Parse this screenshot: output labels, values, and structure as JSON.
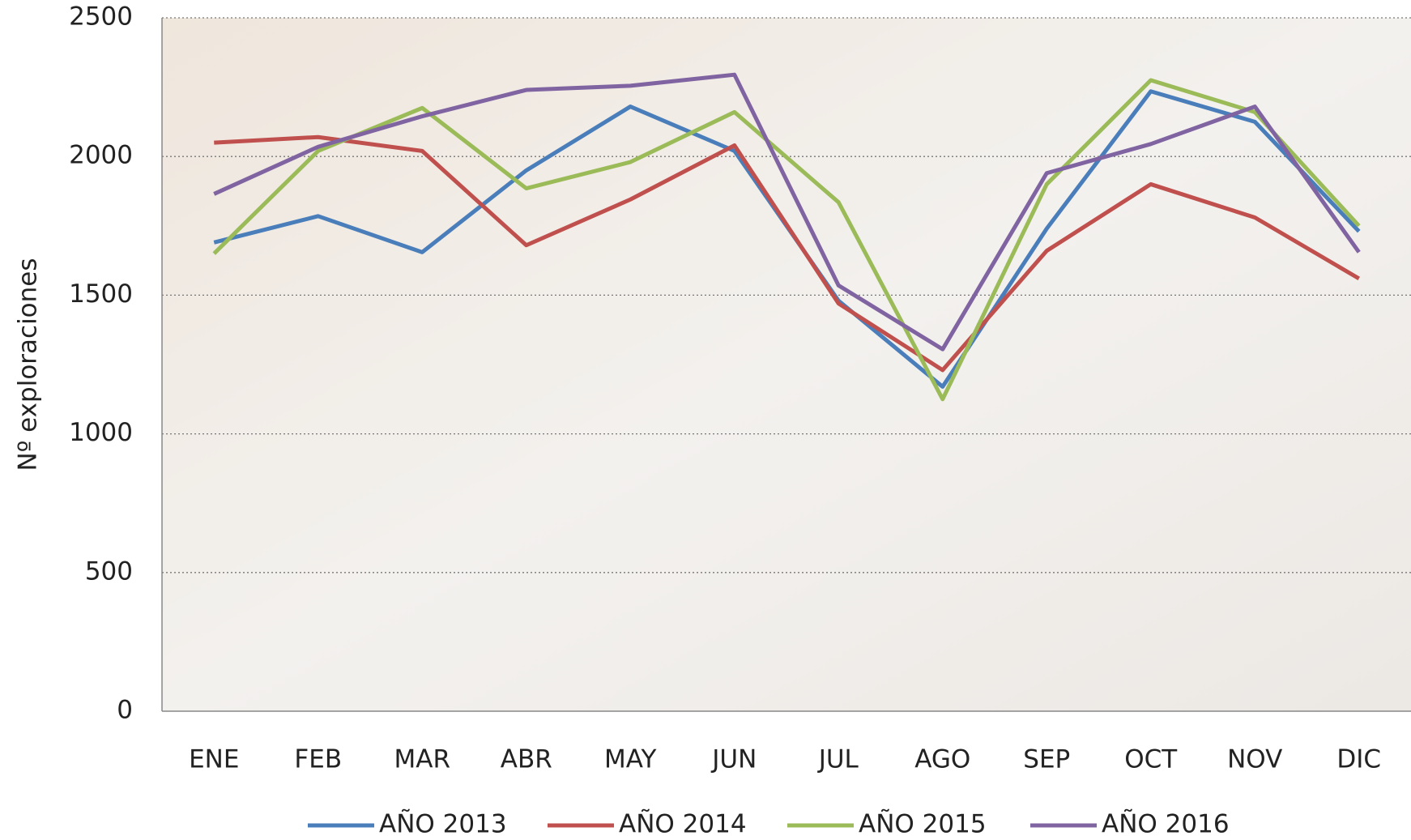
{
  "chart_data": {
    "type": "line",
    "y_label": "Nº exploraciones",
    "categories": [
      "ENE",
      "FEB",
      "MAR",
      "ABR",
      "MAY",
      "JUN",
      "JUL",
      "AGO",
      "SEP",
      "OCT",
      "NOV",
      "DIC"
    ],
    "series": [
      {
        "name": "AÑO 2013",
        "color": "#4a7ebb",
        "values": [
          1690,
          1785,
          1655,
          1950,
          2180,
          2020,
          1480,
          1170,
          1740,
          2235,
          2125,
          1730
        ]
      },
      {
        "name": "AÑO 2014",
        "color": "#c0504d",
        "values": [
          2050,
          2070,
          2020,
          1680,
          1845,
          2040,
          1470,
          1230,
          1660,
          1900,
          1780,
          1560
        ]
      },
      {
        "name": "AÑO 2015",
        "color": "#9bbb59",
        "values": [
          1650,
          2020,
          2175,
          1885,
          1980,
          2160,
          1835,
          1125,
          1900,
          2275,
          2160,
          1750
        ]
      },
      {
        "name": "AÑO 2016",
        "color": "#8064a2",
        "values": [
          1865,
          2035,
          2145,
          2240,
          2255,
          2295,
          1535,
          1305,
          1940,
          2045,
          2180,
          1655
        ]
      }
    ],
    "ylim": [
      0,
      2500
    ],
    "yticks": [
      0,
      500,
      1000,
      1500,
      2000,
      2500
    ],
    "grid": true,
    "legend": "bottom"
  }
}
